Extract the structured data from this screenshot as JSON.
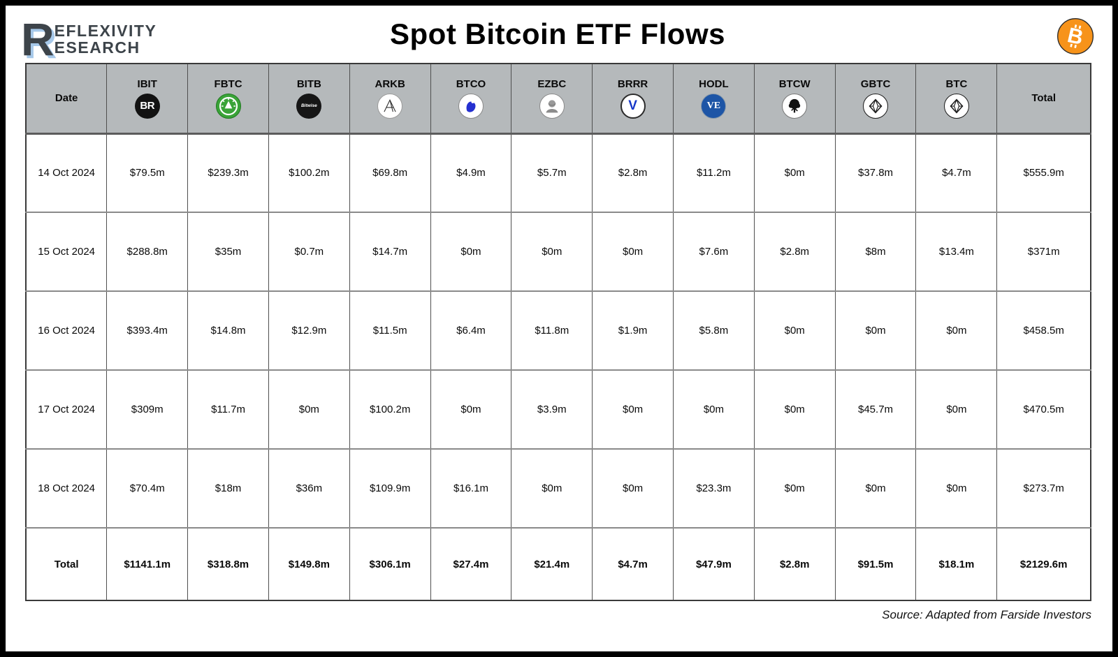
{
  "header": {
    "brand_initial": "R",
    "brand_line1": "EFLEXIVITY",
    "brand_line2": "ESEARCH",
    "title": "Spot Bitcoin ETF Flows"
  },
  "icons": {
    "bitcoin-icon": "bitcoin-b-in-orange-circle",
    "blackrock_text": "BR",
    "bitwise_text": "Bitwise",
    "valkyrie_text": "V",
    "vaneck_text": "VE"
  },
  "table": {
    "columns": [
      {
        "key": "date",
        "label": "Date",
        "icon": null
      },
      {
        "key": "ibit",
        "label": "IBIT",
        "icon": "blackrock-icon"
      },
      {
        "key": "fbtc",
        "label": "FBTC",
        "icon": "fidelity-icon"
      },
      {
        "key": "bitb",
        "label": "BITB",
        "icon": "bitwise-icon"
      },
      {
        "key": "arkb",
        "label": "ARKB",
        "icon": "ark-icon"
      },
      {
        "key": "btco",
        "label": "BTCO",
        "icon": "invesco-icon"
      },
      {
        "key": "ezbc",
        "label": "EZBC",
        "icon": "franklin-templeton-icon"
      },
      {
        "key": "brrr",
        "label": "BRRR",
        "icon": "valkyrie-icon"
      },
      {
        "key": "hodl",
        "label": "HODL",
        "icon": "vaneck-icon"
      },
      {
        "key": "btcw",
        "label": "BTCW",
        "icon": "wisdomtree-icon"
      },
      {
        "key": "gbtc",
        "label": "GBTC",
        "icon": "grayscale-icon"
      },
      {
        "key": "btc",
        "label": "BTC",
        "icon": "grayscale-mini-icon"
      },
      {
        "key": "total",
        "label": "Total",
        "icon": null
      }
    ]
  },
  "chart_data": {
    "type": "table",
    "title": "Spot Bitcoin ETF Flows",
    "units": "USD millions (net flows)",
    "columns": [
      "Date",
      "IBIT",
      "FBTC",
      "BITB",
      "ARKB",
      "BTCO",
      "EZBC",
      "BRRR",
      "HODL",
      "BTCW",
      "GBTC",
      "BTC",
      "Total"
    ],
    "rows": [
      {
        "date": "14 Oct 2024",
        "values": [
          "$79.5m",
          "$239.3m",
          "$100.2m",
          "$69.8m",
          "$4.9m",
          "$5.7m",
          "$2.8m",
          "$11.2m",
          "$0m",
          "$37.8m",
          "$4.7m",
          "$555.9m"
        ]
      },
      {
        "date": "15 Oct 2024",
        "values": [
          "$288.8m",
          "$35m",
          "$0.7m",
          "$14.7m",
          "$0m",
          "$0m",
          "$0m",
          "$7.6m",
          "$2.8m",
          "$8m",
          "$13.4m",
          "$371m"
        ]
      },
      {
        "date": "16 Oct 2024",
        "values": [
          "$393.4m",
          "$14.8m",
          "$12.9m",
          "$11.5m",
          "$6.4m",
          "$11.8m",
          "$1.9m",
          "$5.8m",
          "$0m",
          "$0m",
          "$0m",
          "$458.5m"
        ]
      },
      {
        "date": "17 Oct 2024",
        "values": [
          "$309m",
          "$11.7m",
          "$0m",
          "$100.2m",
          "$0m",
          "$3.9m",
          "$0m",
          "$0m",
          "$0m",
          "$45.7m",
          "$0m",
          "$470.5m"
        ]
      },
      {
        "date": "18 Oct 2024",
        "values": [
          "$70.4m",
          "$18m",
          "$36m",
          "$109.9m",
          "$16.1m",
          "$0m",
          "$0m",
          "$23.3m",
          "$0m",
          "$0m",
          "$0m",
          "$273.7m"
        ]
      }
    ],
    "total_row": {
      "label": "Total",
      "values": [
        "$1141.1m",
        "$318.8m",
        "$149.8m",
        "$306.1m",
        "$27.4m",
        "$21.4m",
        "$4.7m",
        "$47.9m",
        "$2.8m",
        "$91.5m",
        "$18.1m",
        "$2129.6m"
      ]
    }
  },
  "footer": {
    "source": "Source: Adapted from Farside Investors"
  },
  "colors": {
    "bitcoin_orange": "#f7931a",
    "header_gray": "#b5b9bb",
    "fidelity_green": "#3aa338",
    "vaneck_blue": "#1d55a6",
    "valkyrie_blue": "#1637c8",
    "invesco_blue": "#2430d0",
    "border_dark": "#3a3a3a",
    "row_divider_gray": "#8a8a8a"
  }
}
